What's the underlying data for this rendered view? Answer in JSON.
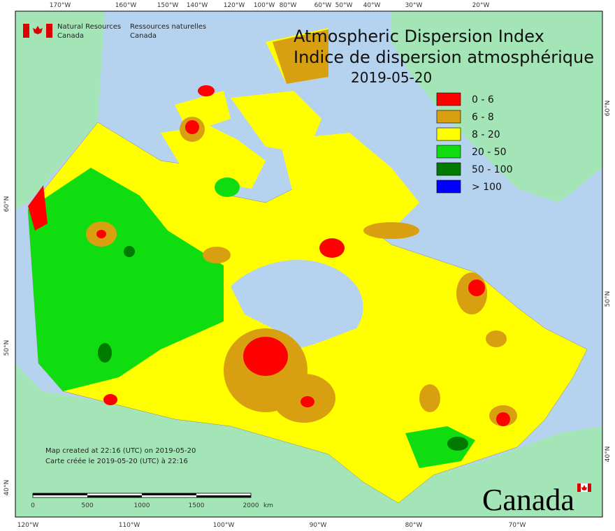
{
  "header": {
    "org_en": [
      "Natural Resources",
      "Canada"
    ],
    "org_fr": [
      "Ressources naturelles",
      "Canada"
    ]
  },
  "title": [
    "Atmospheric Dispersion Index",
    "Indice de dispersion atmosphérique"
  ],
  "date": "2019-05-20",
  "legend": [
    {
      "label": "0 - 6",
      "color": "#ff0000"
    },
    {
      "label": "6 - 8",
      "color": "#d8a010"
    },
    {
      "label": "8 - 20",
      "color": "#ffff00"
    },
    {
      "label": "20 - 50",
      "color": "#10dd10"
    },
    {
      "label": "50 - 100",
      "color": "#007a00"
    },
    {
      "label": "> 100",
      "color": "#0000ff"
    }
  ],
  "graticule": {
    "top": [
      "170°W",
      "160°W",
      "150°W",
      "140°W",
      "120°W",
      "100°W",
      "80°W",
      "60°W",
      "50°W",
      "40°W",
      "30°W",
      "20°W"
    ],
    "bottom": [
      "120°W",
      "110°W",
      "100°W",
      "90°W",
      "80°W",
      "70°W"
    ],
    "left": [
      "60°N",
      "50°N",
      "40°N"
    ],
    "right": [
      "60°N",
      "50°N",
      "40°N"
    ]
  },
  "credits": [
    "Map created at 22:16 (UTC) on 2019-05-20",
    "Carte créée le 2019-05-20 (UTC) à 22:16"
  ],
  "scale_bar": {
    "labels": [
      "0",
      "500",
      "1000",
      "1500",
      "2000"
    ],
    "unit": "km"
  },
  "wordmark": "Canada"
}
